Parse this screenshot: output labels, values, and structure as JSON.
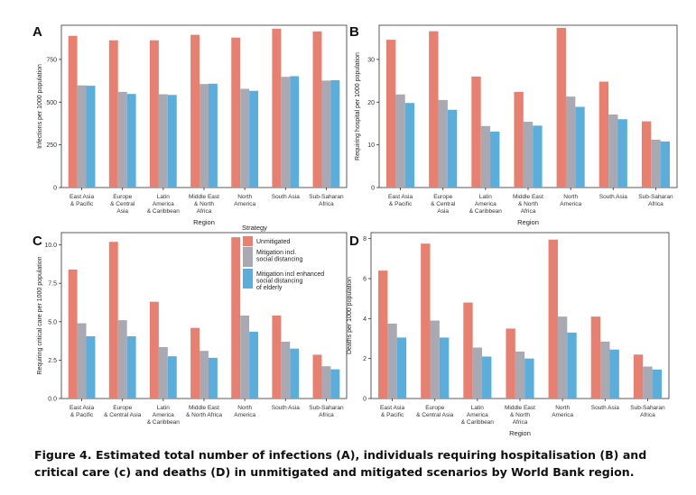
{
  "colors": {
    "unmitigated": "#E88071",
    "social": "#A9A9B4",
    "elderly": "#5AAEDB"
  },
  "legend": {
    "title": "Strategy",
    "items": [
      {
        "lines": [
          "Unmitigated"
        ],
        "color_key": "unmitigated"
      },
      {
        "lines": [
          "Mitigation incl.",
          "social distancing"
        ],
        "color_key": "social"
      },
      {
        "lines": [
          "Mitigation incl enhanced",
          "social distancing",
          "of elderly"
        ],
        "color_key": "elderly"
      }
    ]
  },
  "caption": "Figure 4. Estimated total number of infections (A), individuals requiring hospitalisation (B) and critical care (c) and deaths (D) in unmitigated and mitigated scenarios by World Bank region.",
  "chart_data": [
    {
      "panel": "A",
      "type": "bar",
      "title": "",
      "xlabel": "Region",
      "ylabel": "Infections per 1000 population",
      "ylim": [
        0,
        950
      ],
      "yticks": [
        0,
        250,
        500,
        750
      ],
      "categories": [
        [
          "East Asia",
          "& Pacific"
        ],
        [
          "Europe",
          "& Central",
          "Asia"
        ],
        [
          "Latin",
          "America",
          "& Caribbean"
        ],
        [
          "Middle East",
          "& North",
          "Africa"
        ],
        [
          "North",
          "America"
        ],
        [
          "South Asia"
        ],
        [
          "Sub-Saharan",
          "Africa"
        ]
      ],
      "series": [
        {
          "name": "Unmitigated",
          "values": [
            888,
            862,
            862,
            894,
            878,
            930,
            914
          ]
        },
        {
          "name": "Mitigation incl. social distancing",
          "values": [
            598,
            560,
            546,
            606,
            578,
            648,
            626
          ]
        },
        {
          "name": "Mitigation incl enhanced social distancing of elderly",
          "values": [
            596,
            548,
            542,
            608,
            566,
            652,
            628
          ]
        }
      ]
    },
    {
      "panel": "B",
      "type": "bar",
      "title": "",
      "xlabel": "Region",
      "ylabel": "Requiring hospital per 1000 population",
      "ylim": [
        0,
        38
      ],
      "yticks": [
        0,
        10,
        20,
        30
      ],
      "categories": [
        [
          "East Asia",
          "& Pacific"
        ],
        [
          "Europe",
          "& Central",
          "Asia"
        ],
        [
          "Latin",
          "America",
          "& Caribbean"
        ],
        [
          "Middle East",
          "& North",
          "Africa"
        ],
        [
          "North",
          "America"
        ],
        [
          "South Asia"
        ],
        [
          "Sub-Saharan",
          "Africa"
        ]
      ],
      "series": [
        {
          "name": "Unmitigated",
          "values": [
            34.6,
            36.6,
            26.0,
            22.4,
            37.4,
            24.8,
            15.5
          ]
        },
        {
          "name": "Mitigation incl. social distancing",
          "values": [
            21.8,
            20.5,
            14.4,
            15.4,
            21.3,
            17.1,
            11.2
          ]
        },
        {
          "name": "Mitigation incl enhanced social distancing of elderly",
          "values": [
            19.8,
            18.2,
            13.1,
            14.5,
            18.9,
            16.0,
            10.8
          ]
        }
      ]
    },
    {
      "panel": "C",
      "type": "bar",
      "title": "",
      "xlabel": "",
      "ylabel": "Requiring critical care per 1000 population",
      "ylim": [
        0,
        10.8
      ],
      "yticks": [
        0,
        2.5,
        5,
        7.5,
        10
      ],
      "ytick_labels": [
        "0.0",
        "2.5",
        "5.0",
        "7.5",
        "10.0"
      ],
      "categories": [
        [
          "East Asia",
          "& Pacific"
        ],
        [
          "Europe",
          "& Central Asia"
        ],
        [
          "Latin",
          "America",
          "& Caribbean"
        ],
        [
          "Middle East",
          "& North Africa"
        ],
        [
          "North",
          "America"
        ],
        [
          "South Asia"
        ],
        [
          "Sub-Saharan",
          "Africa"
        ]
      ],
      "series": [
        {
          "name": "Unmitigated",
          "values": [
            8.4,
            10.2,
            6.3,
            4.6,
            10.5,
            5.4,
            2.85
          ]
        },
        {
          "name": "Mitigation incl. social distancing",
          "values": [
            4.9,
            5.1,
            3.35,
            3.1,
            5.4,
            3.7,
            2.1
          ]
        },
        {
          "name": "Mitigation incl enhanced social distancing of elderly",
          "values": [
            4.05,
            4.05,
            2.75,
            2.65,
            4.35,
            3.25,
            1.9
          ]
        }
      ]
    },
    {
      "panel": "D",
      "type": "bar",
      "title": "",
      "xlabel": "Region",
      "ylabel": "Deaths per 1000 population",
      "ylim": [
        0,
        8.3
      ],
      "yticks": [
        0,
        2,
        4,
        6,
        8
      ],
      "categories": [
        [
          "East Asia",
          "& Pacific"
        ],
        [
          "Europe",
          "& Central Asia"
        ],
        [
          "Latin",
          "America",
          "& Caribbean"
        ],
        [
          "Middle East",
          "& North",
          "Africa"
        ],
        [
          "North",
          "America"
        ],
        [
          "South Asia"
        ],
        [
          "Sub-Saharan",
          "Africa"
        ]
      ],
      "series": [
        {
          "name": "Unmitigated",
          "values": [
            6.4,
            7.75,
            4.8,
            3.5,
            7.95,
            4.1,
            2.2
          ]
        },
        {
          "name": "Mitigation incl. social distancing",
          "values": [
            3.75,
            3.9,
            2.55,
            2.35,
            4.1,
            2.85,
            1.6
          ]
        },
        {
          "name": "Mitigation incl enhanced social distancing of elderly",
          "values": [
            3.05,
            3.05,
            2.1,
            2.0,
            3.3,
            2.45,
            1.45
          ]
        }
      ]
    }
  ]
}
